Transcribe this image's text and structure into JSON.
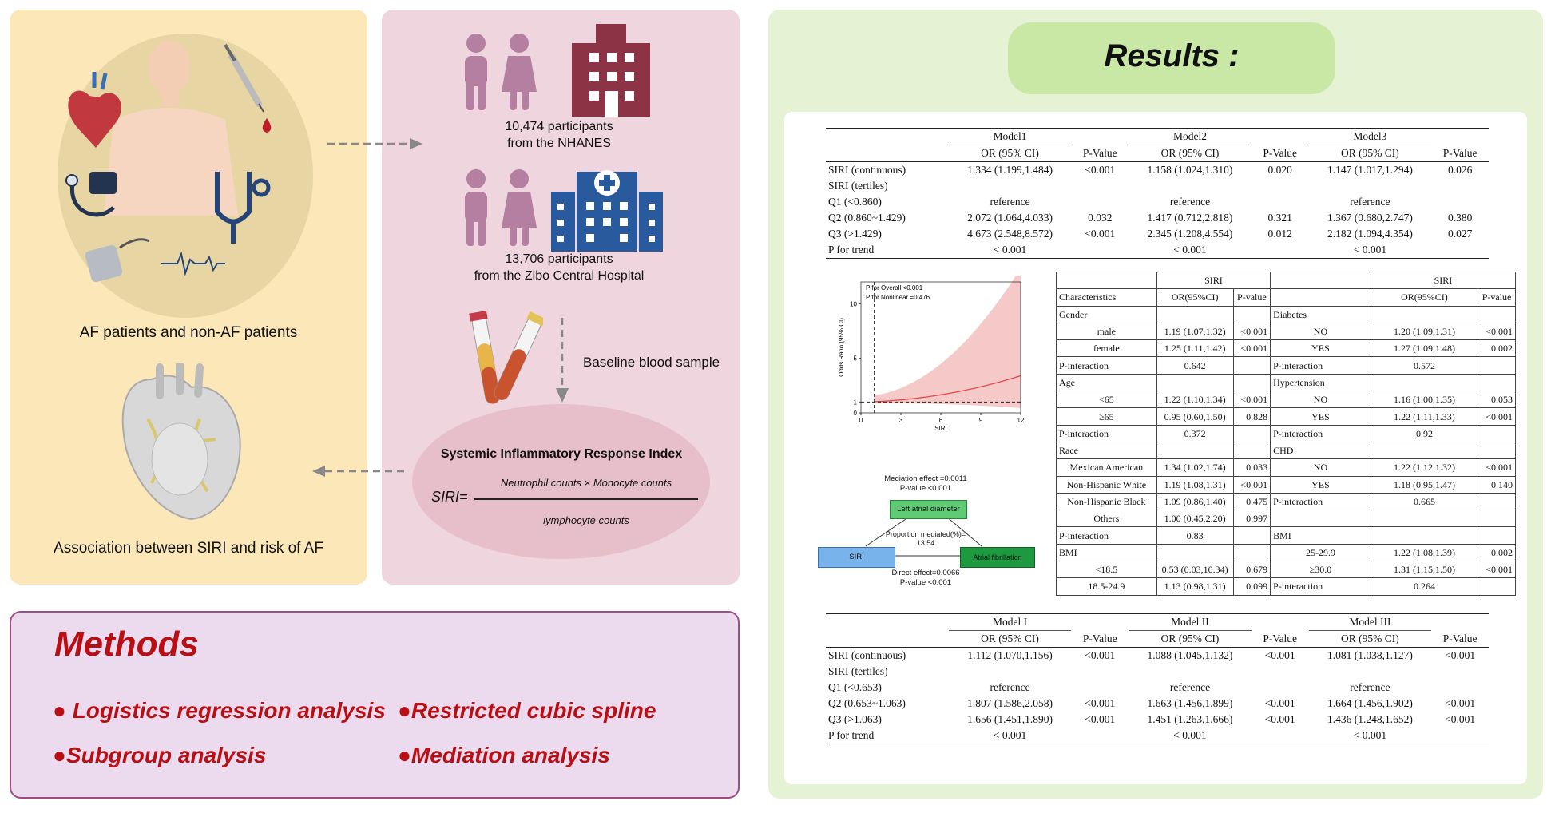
{
  "left_panel": {
    "caption_top": "AF patients and non-AF patients",
    "caption_bottom": "Association between SIRI and risk of AF"
  },
  "middle_panel": {
    "nhanes_line1": "10,474 participants",
    "nhanes_line2": "from the NHANES",
    "zibo_line1": "13,706 participants",
    "zibo_line2": "from the Zibo Central Hospital",
    "blood_label": "Baseline blood sample",
    "siri_title": "Systemic Inflammatory Response Index",
    "siri_lhs": "SIRI=",
    "siri_numerator": "Neutrophil counts × Monocyte counts",
    "siri_denominator": "lymphocyte counts"
  },
  "methods": {
    "title": "Methods",
    "items": [
      "Logistics regression analysis",
      "Restricted cubic spline",
      "Subgroup analysis",
      "Mediation analysis"
    ],
    "bullet": "●"
  },
  "results": {
    "title": "Results :",
    "table1": {
      "models": [
        "Model1",
        "Model2",
        "Model3"
      ],
      "sub_or": "OR (95% CI)",
      "sub_p": "P-Value",
      "rows": [
        [
          "SIRI (continuous)",
          "1.334 (1.199,1.484)",
          "<0.001",
          "1.158 (1.024,1.310)",
          "0.020",
          "1.147 (1.017,1.294)",
          "0.026"
        ],
        [
          "SIRI (tertiles)",
          "",
          "",
          "",
          "",
          "",
          ""
        ],
        [
          "Q1 (<0.860)",
          "reference",
          "",
          "reference",
          "",
          "reference",
          ""
        ],
        [
          "Q2 (0.860~1.429)",
          "2.072 (1.064,4.033)",
          "0.032",
          "1.417 (0.712,2.818)",
          "0.321",
          "1.367 (0.680,2.747)",
          "0.380"
        ],
        [
          "Q3 (>1.429)",
          "4.673 (2.548,8.572)",
          "<0.001",
          "2.345 (1.208,4.554)",
          "0.012",
          "2.182 (1.094,4.354)",
          "0.027"
        ],
        [
          "P for trend",
          "< 0.001",
          "",
          "< 0.001",
          "",
          "< 0.001",
          ""
        ]
      ]
    },
    "table2": {
      "models": [
        "Model I",
        "Model II",
        "Model III"
      ],
      "sub_or": "OR (95% CI)",
      "sub_p": "P-Value",
      "rows": [
        [
          "SIRI (continuous)",
          "1.112 (1.070,1.156)",
          "<0.001",
          "1.088 (1.045,1.132)",
          "<0.001",
          "1.081 (1.038,1.127)",
          "<0.001"
        ],
        [
          "SIRI (tertiles)",
          "",
          "",
          "",
          "",
          "",
          ""
        ],
        [
          "Q1 (<0.653)",
          "reference",
          "",
          "reference",
          "",
          "reference",
          ""
        ],
        [
          "Q2 (0.653~1.063)",
          "1.807 (1.586,2.058)",
          "<0.001",
          "1.663 (1.456,1.899)",
          "<0.001",
          "1.664 (1.456,1.902)",
          "<0.001"
        ],
        [
          "Q3 (>1.063)",
          "1.656 (1.451,1.890)",
          "<0.001",
          "1.451 (1.263,1.666)",
          "<0.001",
          "1.436 (1.248,1.652)",
          "<0.001"
        ],
        [
          "P for trend",
          "< 0.001",
          "",
          "< 0.001",
          "",
          "< 0.001",
          ""
        ]
      ]
    },
    "subgroup": {
      "siri": "SIRI",
      "header": [
        "Characteristics",
        "OR(95%CI)",
        "P-value",
        "",
        "OR(95%CI)",
        "P-value"
      ],
      "rows": [
        [
          "Gender",
          "",
          "",
          "Diabetes",
          "",
          ""
        ],
        [
          "male",
          "1.19 (1.07,1.32)",
          "<0.001",
          "NO",
          "1.20 (1.09,1.31)",
          "<0.001"
        ],
        [
          "female",
          "1.25 (1.11,1.42)",
          "<0.001",
          "YES",
          "1.27 (1.09,1.48)",
          "0.002"
        ],
        [
          "P-interaction",
          "0.642",
          "",
          "P-interaction",
          "0.572",
          ""
        ],
        [
          "Age",
          "",
          "",
          "Hypertension",
          "",
          ""
        ],
        [
          "<65",
          "1.22 (1.10,1.34)",
          "<0.001",
          "NO",
          "1.16 (1.00,1.35)",
          "0.053"
        ],
        [
          "≥65",
          "0.95 (0.60,1.50)",
          "0.828",
          "YES",
          "1.22 (1.11,1.33)",
          "<0.001"
        ],
        [
          "P-interaction",
          "0.372",
          "",
          "P-interaction",
          "0.92",
          ""
        ],
        [
          "Race",
          "",
          "",
          "CHD",
          "",
          ""
        ],
        [
          "Mexican American",
          "1.34 (1.02,1.74)",
          "0.033",
          "NO",
          "1.22 (1.12.1.32)",
          "<0.001"
        ],
        [
          "Non-Hispanic White",
          "1.19 (1.08,1.31)",
          "<0.001",
          "YES",
          "1.18 (0.95,1.47)",
          "0.140"
        ],
        [
          "Non-Hispanic Black",
          "1.09 (0.86,1.40)",
          "0.475",
          "P-interaction",
          "0.665",
          ""
        ],
        [
          "Others",
          "1.00 (0.45,2.20)",
          "0.997",
          "",
          "",
          ""
        ],
        [
          "P-interaction",
          "0.83",
          "",
          "BMI",
          "",
          ""
        ],
        [
          "BMI",
          "",
          "",
          "25-29.9",
          "1.22 (1.08,1.39)",
          "0.002"
        ],
        [
          "<18.5",
          "0.53 (0.03,10.34)",
          "0.679",
          "≥30.0",
          "1.31 (1.15,1.50)",
          "<0.001"
        ],
        [
          "18.5-24.9",
          "1.13 (0.98,1.31)",
          "0.099",
          "P-interaction",
          "0.264",
          ""
        ]
      ]
    },
    "rcs": {
      "p_overall": "P for Overall <0.001",
      "p_nonlinear": "P for Nonlinear =0.476",
      "ylabel": "Odds Ratio (95% CI)",
      "xlabel": "SIRI",
      "xticks": [
        "0",
        "3",
        "6",
        "9",
        "12"
      ],
      "yticks": [
        "0",
        "1",
        "5",
        "10"
      ],
      "colors": {
        "line": "#e34848",
        "band": "#f6c9c9"
      }
    },
    "mediation": {
      "mediation_effect": "Mediation effect =0.0011",
      "p_top": "P-value <0.001",
      "mediator": "Left atrial diameter",
      "prop_line1": "Proportion mediated(%)=",
      "prop_line2": "13.54",
      "exposure": "SIRI",
      "outcome": "Atrial fibrillation",
      "direct": "Direct effect=0.0066",
      "p_bottom": "P-value <0.001"
    }
  },
  "colors": {
    "methods_red": "#b80f14",
    "panel_yellow": "#fbe7b8",
    "panel_pink": "#efd5dd",
    "panel_green": "#e5f2d3",
    "purple_person": "#b57fa2",
    "hospital_red": "#8c3345",
    "hospital_blue": "#2a5a9e"
  }
}
